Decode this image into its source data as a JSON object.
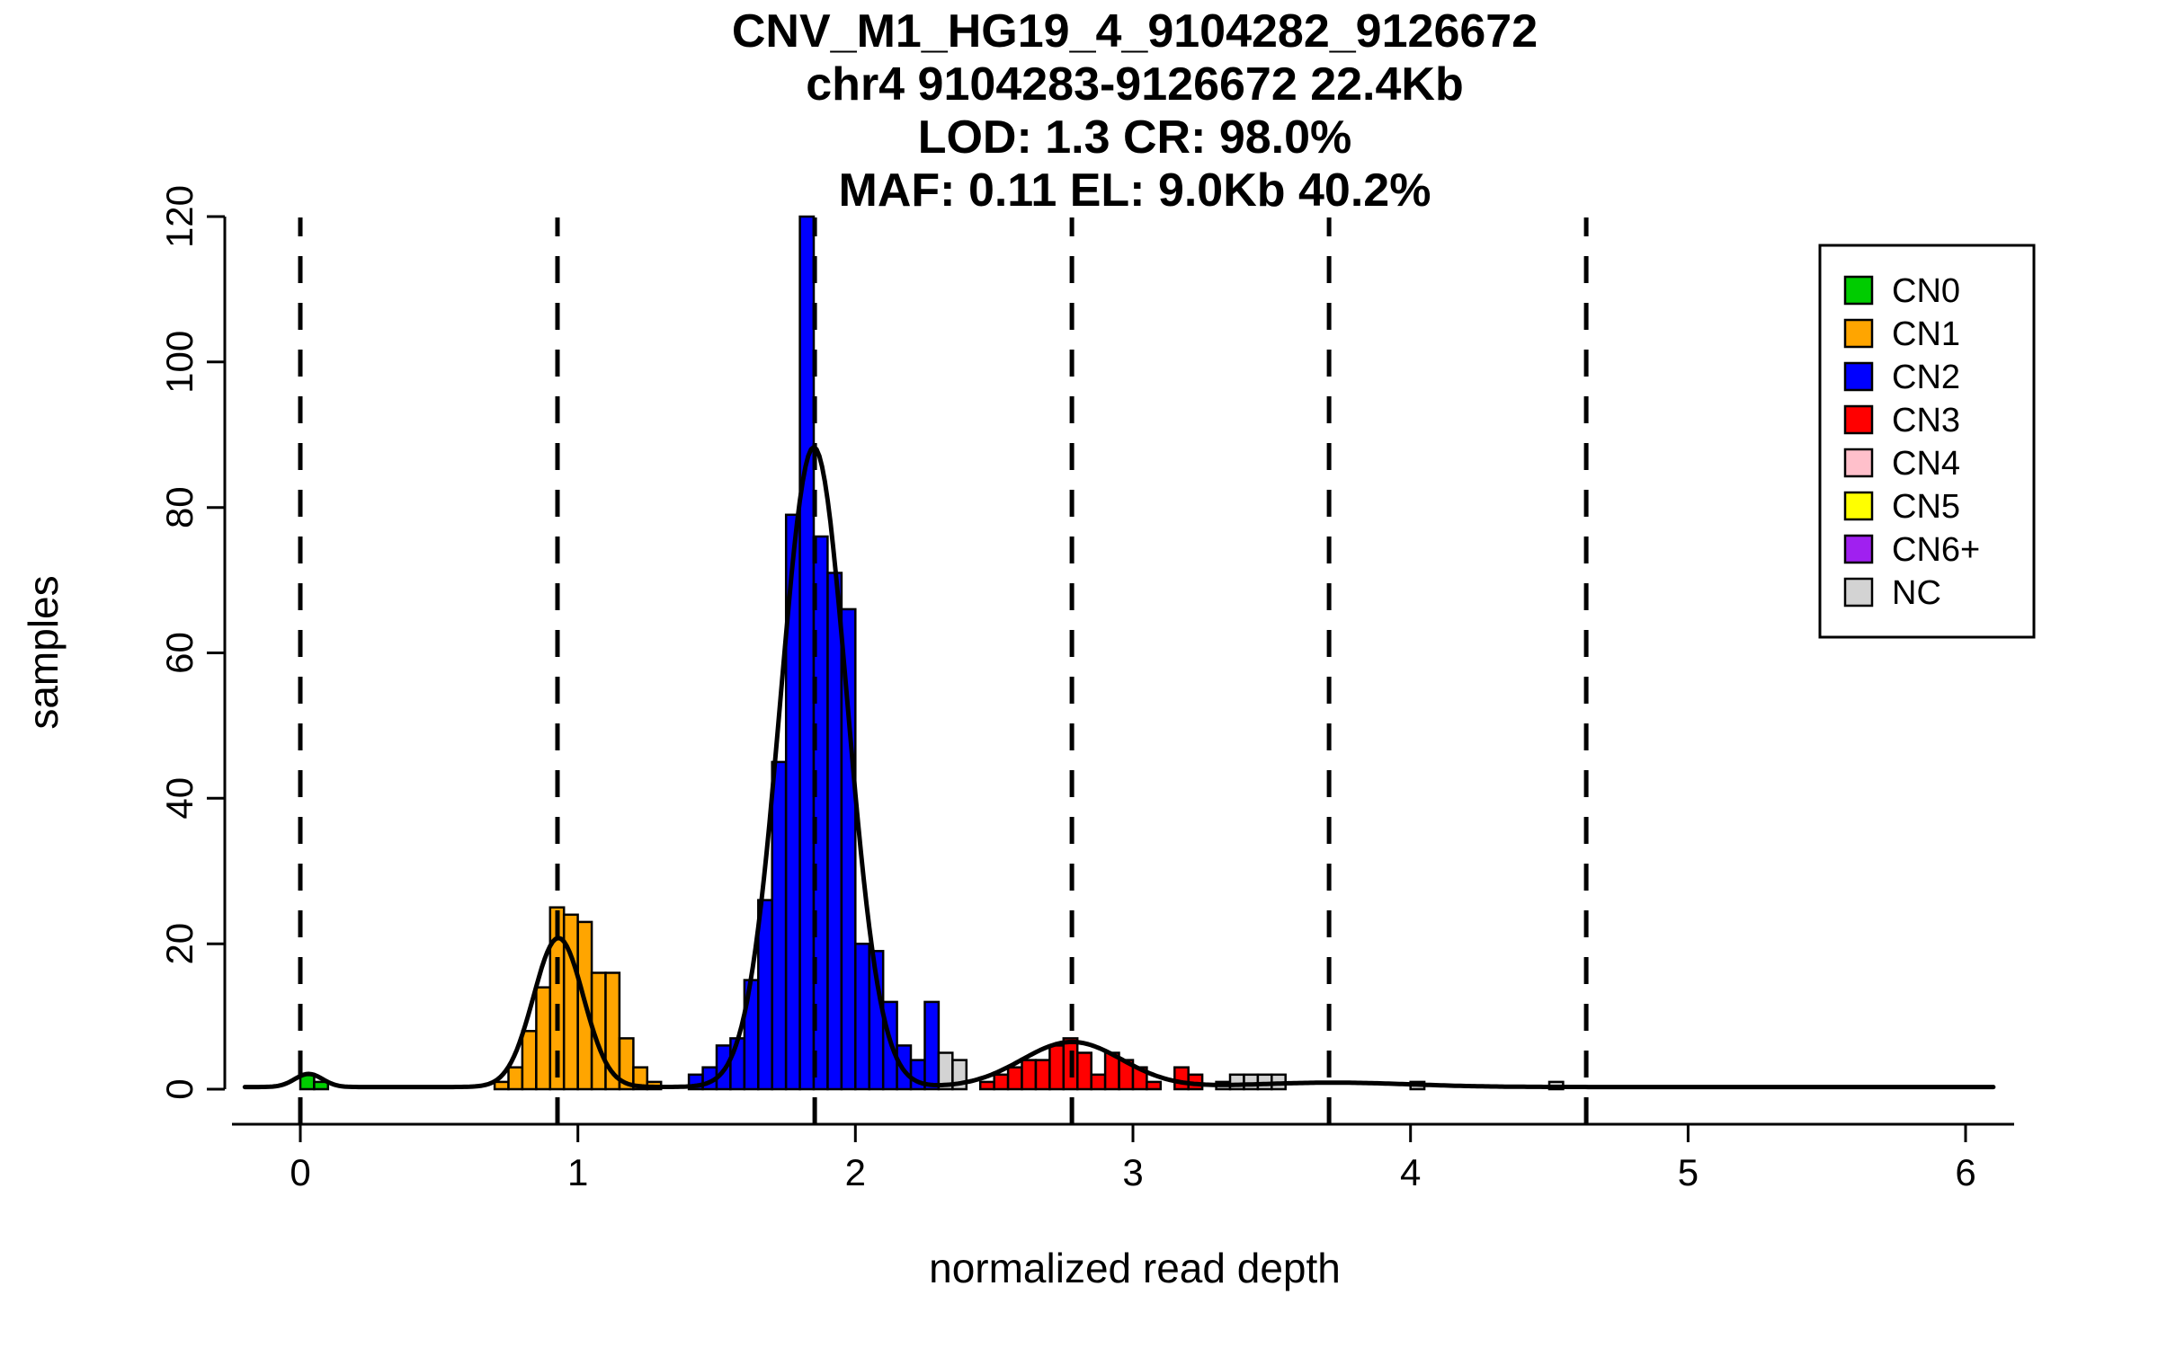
{
  "title": {
    "line1": "CNV_M1_HG19_4_9104282_9126672",
    "line2": "chr4 9104283-9126672 22.4Kb",
    "line3": "LOD: 1.3 CR: 98.0%",
    "line4": "MAF: 0.11 EL: 9.0Kb 40.2%"
  },
  "chart_data": {
    "type": "bar",
    "subtype": "histogram-with-density",
    "title": "CNV_M1_HG19_4_9104282_9126672",
    "xlabel": "normalized read depth",
    "ylabel": "samples",
    "xlim": [
      -0.25,
      6.2
    ],
    "ylim": [
      0,
      120
    ],
    "x_ticks": [
      0,
      1,
      2,
      3,
      4,
      5,
      6
    ],
    "y_ticks": [
      0,
      20,
      40,
      60,
      80,
      100,
      120
    ],
    "bin_width": 0.05,
    "grid": false,
    "legend_position": "top-right",
    "dashed_lines_x": [
      0,
      0.9266,
      1.8533,
      2.7799,
      3.7066,
      4.6332
    ],
    "colors": {
      "CN0": "#00CC00",
      "CN1": "#FFA500",
      "CN2": "#0000FF",
      "CN3": "#FF0000",
      "CN4": "#FFC0CB",
      "CN5": "#FFFF00",
      "CN6+": "#A020F0",
      "NC": "#D3D3D3"
    },
    "legend": [
      {
        "label": "CN0",
        "color": "#00CC00"
      },
      {
        "label": "CN1",
        "color": "#FFA500"
      },
      {
        "label": "CN2",
        "color": "#0000FF"
      },
      {
        "label": "CN3",
        "color": "#FF0000"
      },
      {
        "label": "CN4",
        "color": "#FFC0CB"
      },
      {
        "label": "CN5",
        "color": "#FFFF00"
      },
      {
        "label": "CN6+",
        "color": "#A020F0"
      },
      {
        "label": "NC",
        "color": "#D3D3D3"
      }
    ],
    "bars": [
      {
        "x": 0.0,
        "count": 2,
        "cn": "CN0"
      },
      {
        "x": 0.05,
        "count": 1,
        "cn": "CN0"
      },
      {
        "x": 0.7,
        "count": 1,
        "cn": "CN1"
      },
      {
        "x": 0.75,
        "count": 3,
        "cn": "CN1"
      },
      {
        "x": 0.8,
        "count": 8,
        "cn": "CN1"
      },
      {
        "x": 0.85,
        "count": 14,
        "cn": "CN1"
      },
      {
        "x": 0.9,
        "count": 25,
        "cn": "CN1"
      },
      {
        "x": 0.95,
        "count": 24,
        "cn": "CN1"
      },
      {
        "x": 1.0,
        "count": 23,
        "cn": "CN1"
      },
      {
        "x": 1.05,
        "count": 16,
        "cn": "CN1"
      },
      {
        "x": 1.1,
        "count": 16,
        "cn": "CN1"
      },
      {
        "x": 1.15,
        "count": 7,
        "cn": "CN1"
      },
      {
        "x": 1.2,
        "count": 3,
        "cn": "CN1"
      },
      {
        "x": 1.25,
        "count": 1,
        "cn": "CN1"
      },
      {
        "x": 1.4,
        "count": 2,
        "cn": "CN2"
      },
      {
        "x": 1.45,
        "count": 3,
        "cn": "CN2"
      },
      {
        "x": 1.5,
        "count": 6,
        "cn": "CN2"
      },
      {
        "x": 1.55,
        "count": 7,
        "cn": "CN2"
      },
      {
        "x": 1.6,
        "count": 15,
        "cn": "CN2"
      },
      {
        "x": 1.65,
        "count": 26,
        "cn": "CN2"
      },
      {
        "x": 1.7,
        "count": 45,
        "cn": "CN2"
      },
      {
        "x": 1.75,
        "count": 79,
        "cn": "CN2"
      },
      {
        "x": 1.8,
        "count": 120,
        "cn": "CN2"
      },
      {
        "x": 1.85,
        "count": 76,
        "cn": "CN2"
      },
      {
        "x": 1.9,
        "count": 71,
        "cn": "CN2"
      },
      {
        "x": 1.95,
        "count": 66,
        "cn": "CN2"
      },
      {
        "x": 2.0,
        "count": 20,
        "cn": "CN2"
      },
      {
        "x": 2.05,
        "count": 19,
        "cn": "CN2"
      },
      {
        "x": 2.1,
        "count": 12,
        "cn": "CN2"
      },
      {
        "x": 2.15,
        "count": 6,
        "cn": "CN2"
      },
      {
        "x": 2.2,
        "count": 4,
        "cn": "CN2"
      },
      {
        "x": 2.25,
        "count": 12,
        "cn": "CN2"
      },
      {
        "x": 2.3,
        "count": 5,
        "cn": "NC"
      },
      {
        "x": 2.35,
        "count": 4,
        "cn": "NC"
      },
      {
        "x": 2.45,
        "count": 1,
        "cn": "CN3"
      },
      {
        "x": 2.5,
        "count": 2,
        "cn": "CN3"
      },
      {
        "x": 2.55,
        "count": 3,
        "cn": "CN3"
      },
      {
        "x": 2.6,
        "count": 4,
        "cn": "CN3"
      },
      {
        "x": 2.65,
        "count": 4,
        "cn": "CN3"
      },
      {
        "x": 2.7,
        "count": 6,
        "cn": "CN3"
      },
      {
        "x": 2.75,
        "count": 7,
        "cn": "CN3"
      },
      {
        "x": 2.8,
        "count": 5,
        "cn": "CN3"
      },
      {
        "x": 2.85,
        "count": 2,
        "cn": "CN3"
      },
      {
        "x": 2.9,
        "count": 5,
        "cn": "CN3"
      },
      {
        "x": 2.95,
        "count": 4,
        "cn": "CN3"
      },
      {
        "x": 3.0,
        "count": 3,
        "cn": "CN3"
      },
      {
        "x": 3.05,
        "count": 1,
        "cn": "CN3"
      },
      {
        "x": 3.15,
        "count": 3,
        "cn": "CN3"
      },
      {
        "x": 3.2,
        "count": 2,
        "cn": "CN3"
      },
      {
        "x": 3.3,
        "count": 1,
        "cn": "NC"
      },
      {
        "x": 3.35,
        "count": 2,
        "cn": "NC"
      },
      {
        "x": 3.4,
        "count": 2,
        "cn": "NC"
      },
      {
        "x": 3.45,
        "count": 2,
        "cn": "NC"
      },
      {
        "x": 3.5,
        "count": 2,
        "cn": "NC"
      },
      {
        "x": 4.0,
        "count": 1,
        "cn": "NC"
      },
      {
        "x": 4.5,
        "count": 1,
        "cn": "NC"
      }
    ],
    "curve": {
      "baseline": 0.3,
      "x_range": [
        -0.2,
        6.1
      ],
      "gaussians": [
        {
          "mu": 0.03,
          "sigma": 0.05,
          "amp": 1.8
        },
        {
          "mu": 0.93,
          "sigma": 0.09,
          "amp": 20.5
        },
        {
          "mu": 1.85,
          "sigma": 0.12,
          "amp": 88
        },
        {
          "mu": 2.78,
          "sigma": 0.18,
          "amp": 6.2
        },
        {
          "mu": 3.72,
          "sigma": 0.28,
          "amp": 0.6
        }
      ]
    }
  }
}
